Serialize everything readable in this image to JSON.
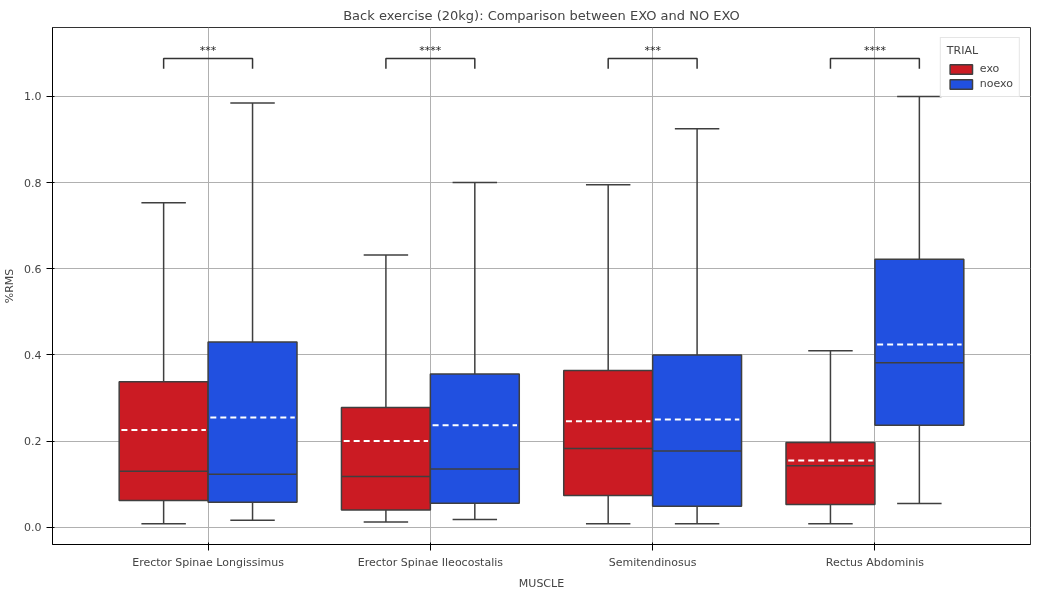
{
  "chart_data": {
    "type": "box",
    "title": "Back exercise (20kg): Comparison between EXO and NO EXO",
    "xlabel": "MUSCLE",
    "ylabel": "%RMS",
    "legend_title": "TRIAL",
    "categories": [
      "Erector Spinae Longissimus",
      "Erector Spinae Ileocostalis",
      "Semitendinosus",
      "Rectus Abdominis"
    ],
    "ylim": [
      -0.04,
      1.16
    ],
    "yticks": [
      {
        "value": 0,
        "label": "0.0"
      },
      0.2,
      0.4,
      0.6,
      0.8,
      {
        "value": 1,
        "label": "1.0"
      }
    ],
    "grid": true,
    "legend": "top right",
    "annotations": [
      "***",
      "****",
      "***",
      "****"
    ],
    "series": [
      {
        "name": "exo",
        "color": "#cb1b23",
        "boxes": [
          {
            "low": 0.008,
            "q1": 0.062,
            "median": 0.13,
            "q3": 0.338,
            "high": 0.753,
            "mean": 0.226
          },
          {
            "low": 0.012,
            "q1": 0.04,
            "median": 0.118,
            "q3": 0.278,
            "high": 0.632,
            "mean": 0.2
          },
          {
            "low": 0.008,
            "q1": 0.074,
            "median": 0.183,
            "q3": 0.364,
            "high": 0.795,
            "mean": 0.246
          },
          {
            "low": 0.008,
            "q1": 0.053,
            "median": 0.143,
            "q3": 0.197,
            "high": 0.41,
            "mean": 0.155
          }
        ]
      },
      {
        "name": "noexo",
        "color": "#2150e0",
        "boxes": [
          {
            "low": 0.016,
            "q1": 0.058,
            "median": 0.123,
            "q3": 0.43,
            "high": 0.985,
            "mean": 0.255
          },
          {
            "low": 0.018,
            "q1": 0.056,
            "median": 0.135,
            "q3": 0.356,
            "high": 0.8,
            "mean": 0.237
          },
          {
            "low": 0.008,
            "q1": 0.049,
            "median": 0.177,
            "q3": 0.4,
            "high": 0.925,
            "mean": 0.25
          },
          {
            "low": 0.055,
            "q1": 0.237,
            "median": 0.382,
            "q3": 0.622,
            "high": 1.0,
            "mean": 0.424
          }
        ]
      }
    ]
  }
}
